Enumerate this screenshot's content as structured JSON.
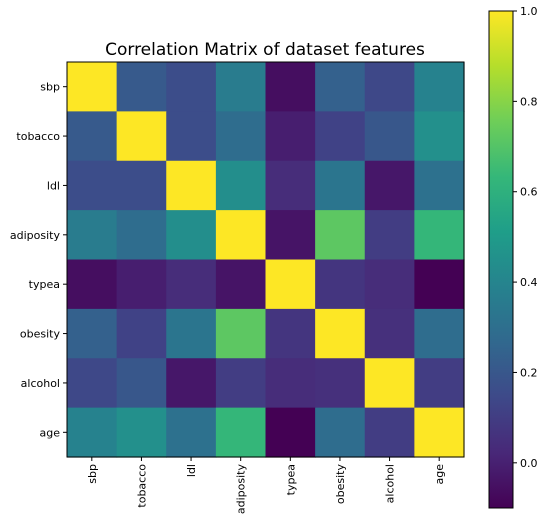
{
  "chart_data": {
    "type": "heatmap",
    "title": "Correlation Matrix of dataset features",
    "xlabel": "",
    "ylabel": "",
    "rows": [
      "sbp",
      "tobacco",
      "ldl",
      "adiposity",
      "typea",
      "obesity",
      "alcohol",
      "age"
    ],
    "columns": [
      "sbp",
      "tobacco",
      "ldl",
      "adiposity",
      "typea",
      "obesity",
      "alcohol",
      "age"
    ],
    "values": [
      [
        1.0,
        0.21,
        0.16,
        0.36,
        -0.06,
        0.24,
        0.14,
        0.39
      ],
      [
        0.21,
        1.0,
        0.16,
        0.29,
        -0.01,
        0.12,
        0.2,
        0.45
      ],
      [
        0.16,
        0.16,
        1.0,
        0.44,
        0.04,
        0.33,
        -0.03,
        0.31
      ],
      [
        0.36,
        0.29,
        0.44,
        1.0,
        -0.04,
        0.72,
        0.1,
        0.63
      ],
      [
        -0.06,
        -0.01,
        0.04,
        -0.04,
        1.0,
        0.07,
        0.04,
        -0.1
      ],
      [
        0.24,
        0.12,
        0.33,
        0.72,
        0.07,
        1.0,
        0.05,
        0.29
      ],
      [
        0.14,
        0.2,
        -0.03,
        0.1,
        0.04,
        0.05,
        1.0,
        0.1
      ],
      [
        0.39,
        0.45,
        0.31,
        0.63,
        -0.1,
        0.29,
        0.1,
        1.0
      ]
    ],
    "colormap": "viridis",
    "colorbar": {
      "range": [
        -0.1,
        1.0
      ],
      "ticks": [
        0.0,
        0.2,
        0.4,
        0.6,
        0.8,
        1.0
      ],
      "tick_labels": [
        "0.0",
        "0.2",
        "0.4",
        "0.6",
        "0.8",
        "1.0"
      ]
    },
    "x_tick_rotation": "vertical",
    "grid": false,
    "legend": "colorbar-right"
  }
}
